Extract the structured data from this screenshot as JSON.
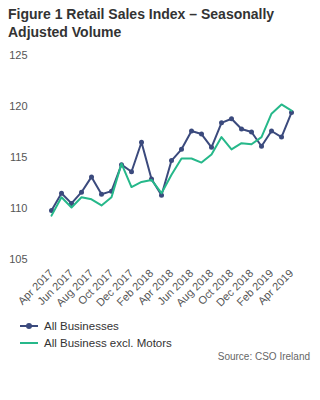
{
  "chart_data": {
    "type": "line",
    "title": "Figure 1 Retail Sales Index – Seasonally Adjusted Volume",
    "source": "Source: CSO Ireland",
    "categories": [
      "Apr 2017",
      null,
      "Jun 2017",
      null,
      "Aug 2017",
      null,
      "Oct 2017",
      null,
      "Dec 2017",
      null,
      "Feb 2018",
      null,
      "Apr 2018",
      null,
      "Jun 2018",
      null,
      "Aug 2018",
      null,
      "Oct 2018",
      null,
      "Dec 2018",
      null,
      "Feb 2019",
      null,
      "Apr 2019"
    ],
    "series": [
      {
        "name": "All Businesses",
        "color": "#3b4a7d",
        "marker": "circle",
        "values": [
          109.8,
          111.5,
          110.5,
          111.6,
          113.1,
          111.4,
          111.7,
          114.3,
          113.6,
          116.5,
          112.9,
          111.3,
          114.7,
          115.8,
          117.6,
          117.3,
          116.0,
          118.4,
          118.8,
          117.8,
          117.5,
          116.1,
          117.6,
          117.0,
          119.4
        ]
      },
      {
        "name": "All Business excl. Motors",
        "color": "#26b88a",
        "marker": "none",
        "values": [
          109.3,
          111.1,
          110.1,
          111.1,
          110.9,
          110.3,
          111.1,
          114.4,
          112.1,
          112.6,
          112.8,
          111.5,
          113.3,
          114.9,
          114.9,
          114.5,
          115.3,
          117.0,
          115.8,
          116.4,
          116.3,
          117.0,
          119.3,
          120.2,
          119.6
        ]
      }
    ],
    "ylim": [
      105,
      125
    ],
    "yticks": [
      105,
      110,
      115,
      120,
      125
    ],
    "grid": false,
    "legend": "bottom"
  }
}
